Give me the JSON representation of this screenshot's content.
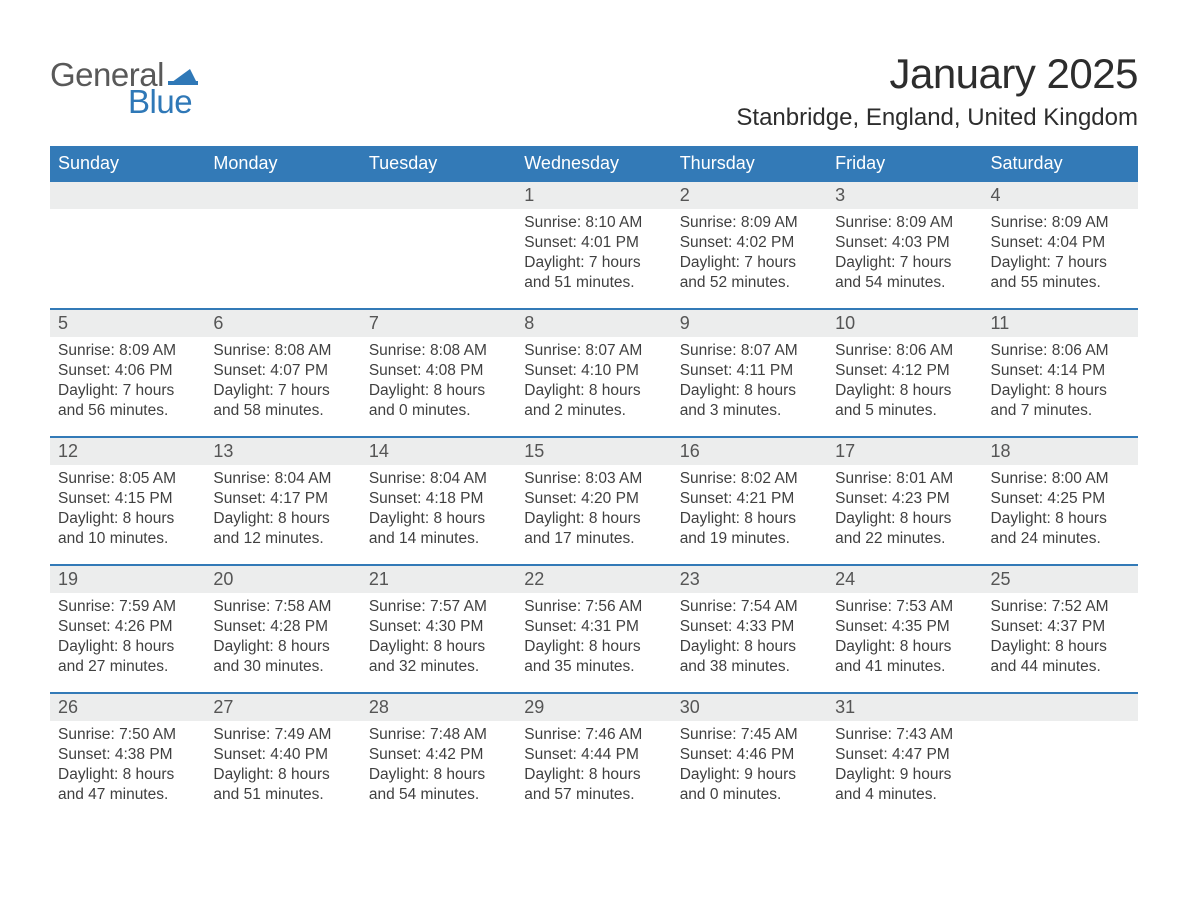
{
  "logo": {
    "text1": "General",
    "text2": "Blue",
    "flag_color": "#2f78b7"
  },
  "title": "January 2025",
  "subtitle": "Stanbridge, England, United Kingdom",
  "colors": {
    "header_bg": "#337ab7",
    "row_gray": "#eceded",
    "title": "#2d2d2d",
    "text": "#404040",
    "logo_gray": "#595959",
    "logo_blue": "#2f78b7"
  },
  "fonts": {
    "title_size": 42,
    "subtitle_size": 24,
    "header_size": 18,
    "daynum_size": 18,
    "detail_size": 15.5
  },
  "weekdays": [
    "Sunday",
    "Monday",
    "Tuesday",
    "Wednesday",
    "Thursday",
    "Friday",
    "Saturday"
  ],
  "weeks": [
    [
      null,
      null,
      null,
      {
        "n": "1",
        "sunrise": "8:10 AM",
        "sunset": "4:01 PM",
        "dl1": "7 hours",
        "dl2": "51 minutes."
      },
      {
        "n": "2",
        "sunrise": "8:09 AM",
        "sunset": "4:02 PM",
        "dl1": "7 hours",
        "dl2": "52 minutes."
      },
      {
        "n": "3",
        "sunrise": "8:09 AM",
        "sunset": "4:03 PM",
        "dl1": "7 hours",
        "dl2": "54 minutes."
      },
      {
        "n": "4",
        "sunrise": "8:09 AM",
        "sunset": "4:04 PM",
        "dl1": "7 hours",
        "dl2": "55 minutes."
      }
    ],
    [
      {
        "n": "5",
        "sunrise": "8:09 AM",
        "sunset": "4:06 PM",
        "dl1": "7 hours",
        "dl2": "56 minutes."
      },
      {
        "n": "6",
        "sunrise": "8:08 AM",
        "sunset": "4:07 PM",
        "dl1": "7 hours",
        "dl2": "58 minutes."
      },
      {
        "n": "7",
        "sunrise": "8:08 AM",
        "sunset": "4:08 PM",
        "dl1": "8 hours",
        "dl2": "0 minutes."
      },
      {
        "n": "8",
        "sunrise": "8:07 AM",
        "sunset": "4:10 PM",
        "dl1": "8 hours",
        "dl2": "2 minutes."
      },
      {
        "n": "9",
        "sunrise": "8:07 AM",
        "sunset": "4:11 PM",
        "dl1": "8 hours",
        "dl2": "3 minutes."
      },
      {
        "n": "10",
        "sunrise": "8:06 AM",
        "sunset": "4:12 PM",
        "dl1": "8 hours",
        "dl2": "5 minutes."
      },
      {
        "n": "11",
        "sunrise": "8:06 AM",
        "sunset": "4:14 PM",
        "dl1": "8 hours",
        "dl2": "7 minutes."
      }
    ],
    [
      {
        "n": "12",
        "sunrise": "8:05 AM",
        "sunset": "4:15 PM",
        "dl1": "8 hours",
        "dl2": "10 minutes."
      },
      {
        "n": "13",
        "sunrise": "8:04 AM",
        "sunset": "4:17 PM",
        "dl1": "8 hours",
        "dl2": "12 minutes."
      },
      {
        "n": "14",
        "sunrise": "8:04 AM",
        "sunset": "4:18 PM",
        "dl1": "8 hours",
        "dl2": "14 minutes."
      },
      {
        "n": "15",
        "sunrise": "8:03 AM",
        "sunset": "4:20 PM",
        "dl1": "8 hours",
        "dl2": "17 minutes."
      },
      {
        "n": "16",
        "sunrise": "8:02 AM",
        "sunset": "4:21 PM",
        "dl1": "8 hours",
        "dl2": "19 minutes."
      },
      {
        "n": "17",
        "sunrise": "8:01 AM",
        "sunset": "4:23 PM",
        "dl1": "8 hours",
        "dl2": "22 minutes."
      },
      {
        "n": "18",
        "sunrise": "8:00 AM",
        "sunset": "4:25 PM",
        "dl1": "8 hours",
        "dl2": "24 minutes."
      }
    ],
    [
      {
        "n": "19",
        "sunrise": "7:59 AM",
        "sunset": "4:26 PM",
        "dl1": "8 hours",
        "dl2": "27 minutes."
      },
      {
        "n": "20",
        "sunrise": "7:58 AM",
        "sunset": "4:28 PM",
        "dl1": "8 hours",
        "dl2": "30 minutes."
      },
      {
        "n": "21",
        "sunrise": "7:57 AM",
        "sunset": "4:30 PM",
        "dl1": "8 hours",
        "dl2": "32 minutes."
      },
      {
        "n": "22",
        "sunrise": "7:56 AM",
        "sunset": "4:31 PM",
        "dl1": "8 hours",
        "dl2": "35 minutes."
      },
      {
        "n": "23",
        "sunrise": "7:54 AM",
        "sunset": "4:33 PM",
        "dl1": "8 hours",
        "dl2": "38 minutes."
      },
      {
        "n": "24",
        "sunrise": "7:53 AM",
        "sunset": "4:35 PM",
        "dl1": "8 hours",
        "dl2": "41 minutes."
      },
      {
        "n": "25",
        "sunrise": "7:52 AM",
        "sunset": "4:37 PM",
        "dl1": "8 hours",
        "dl2": "44 minutes."
      }
    ],
    [
      {
        "n": "26",
        "sunrise": "7:50 AM",
        "sunset": "4:38 PM",
        "dl1": "8 hours",
        "dl2": "47 minutes."
      },
      {
        "n": "27",
        "sunrise": "7:49 AM",
        "sunset": "4:40 PM",
        "dl1": "8 hours",
        "dl2": "51 minutes."
      },
      {
        "n": "28",
        "sunrise": "7:48 AM",
        "sunset": "4:42 PM",
        "dl1": "8 hours",
        "dl2": "54 minutes."
      },
      {
        "n": "29",
        "sunrise": "7:46 AM",
        "sunset": "4:44 PM",
        "dl1": "8 hours",
        "dl2": "57 minutes."
      },
      {
        "n": "30",
        "sunrise": "7:45 AM",
        "sunset": "4:46 PM",
        "dl1": "9 hours",
        "dl2": "0 minutes."
      },
      {
        "n": "31",
        "sunrise": "7:43 AM",
        "sunset": "4:47 PM",
        "dl1": "9 hours",
        "dl2": "4 minutes."
      },
      null
    ]
  ],
  "labels": {
    "sunrise": "Sunrise: ",
    "sunset": "Sunset: ",
    "daylight": "Daylight: ",
    "and": "and "
  }
}
